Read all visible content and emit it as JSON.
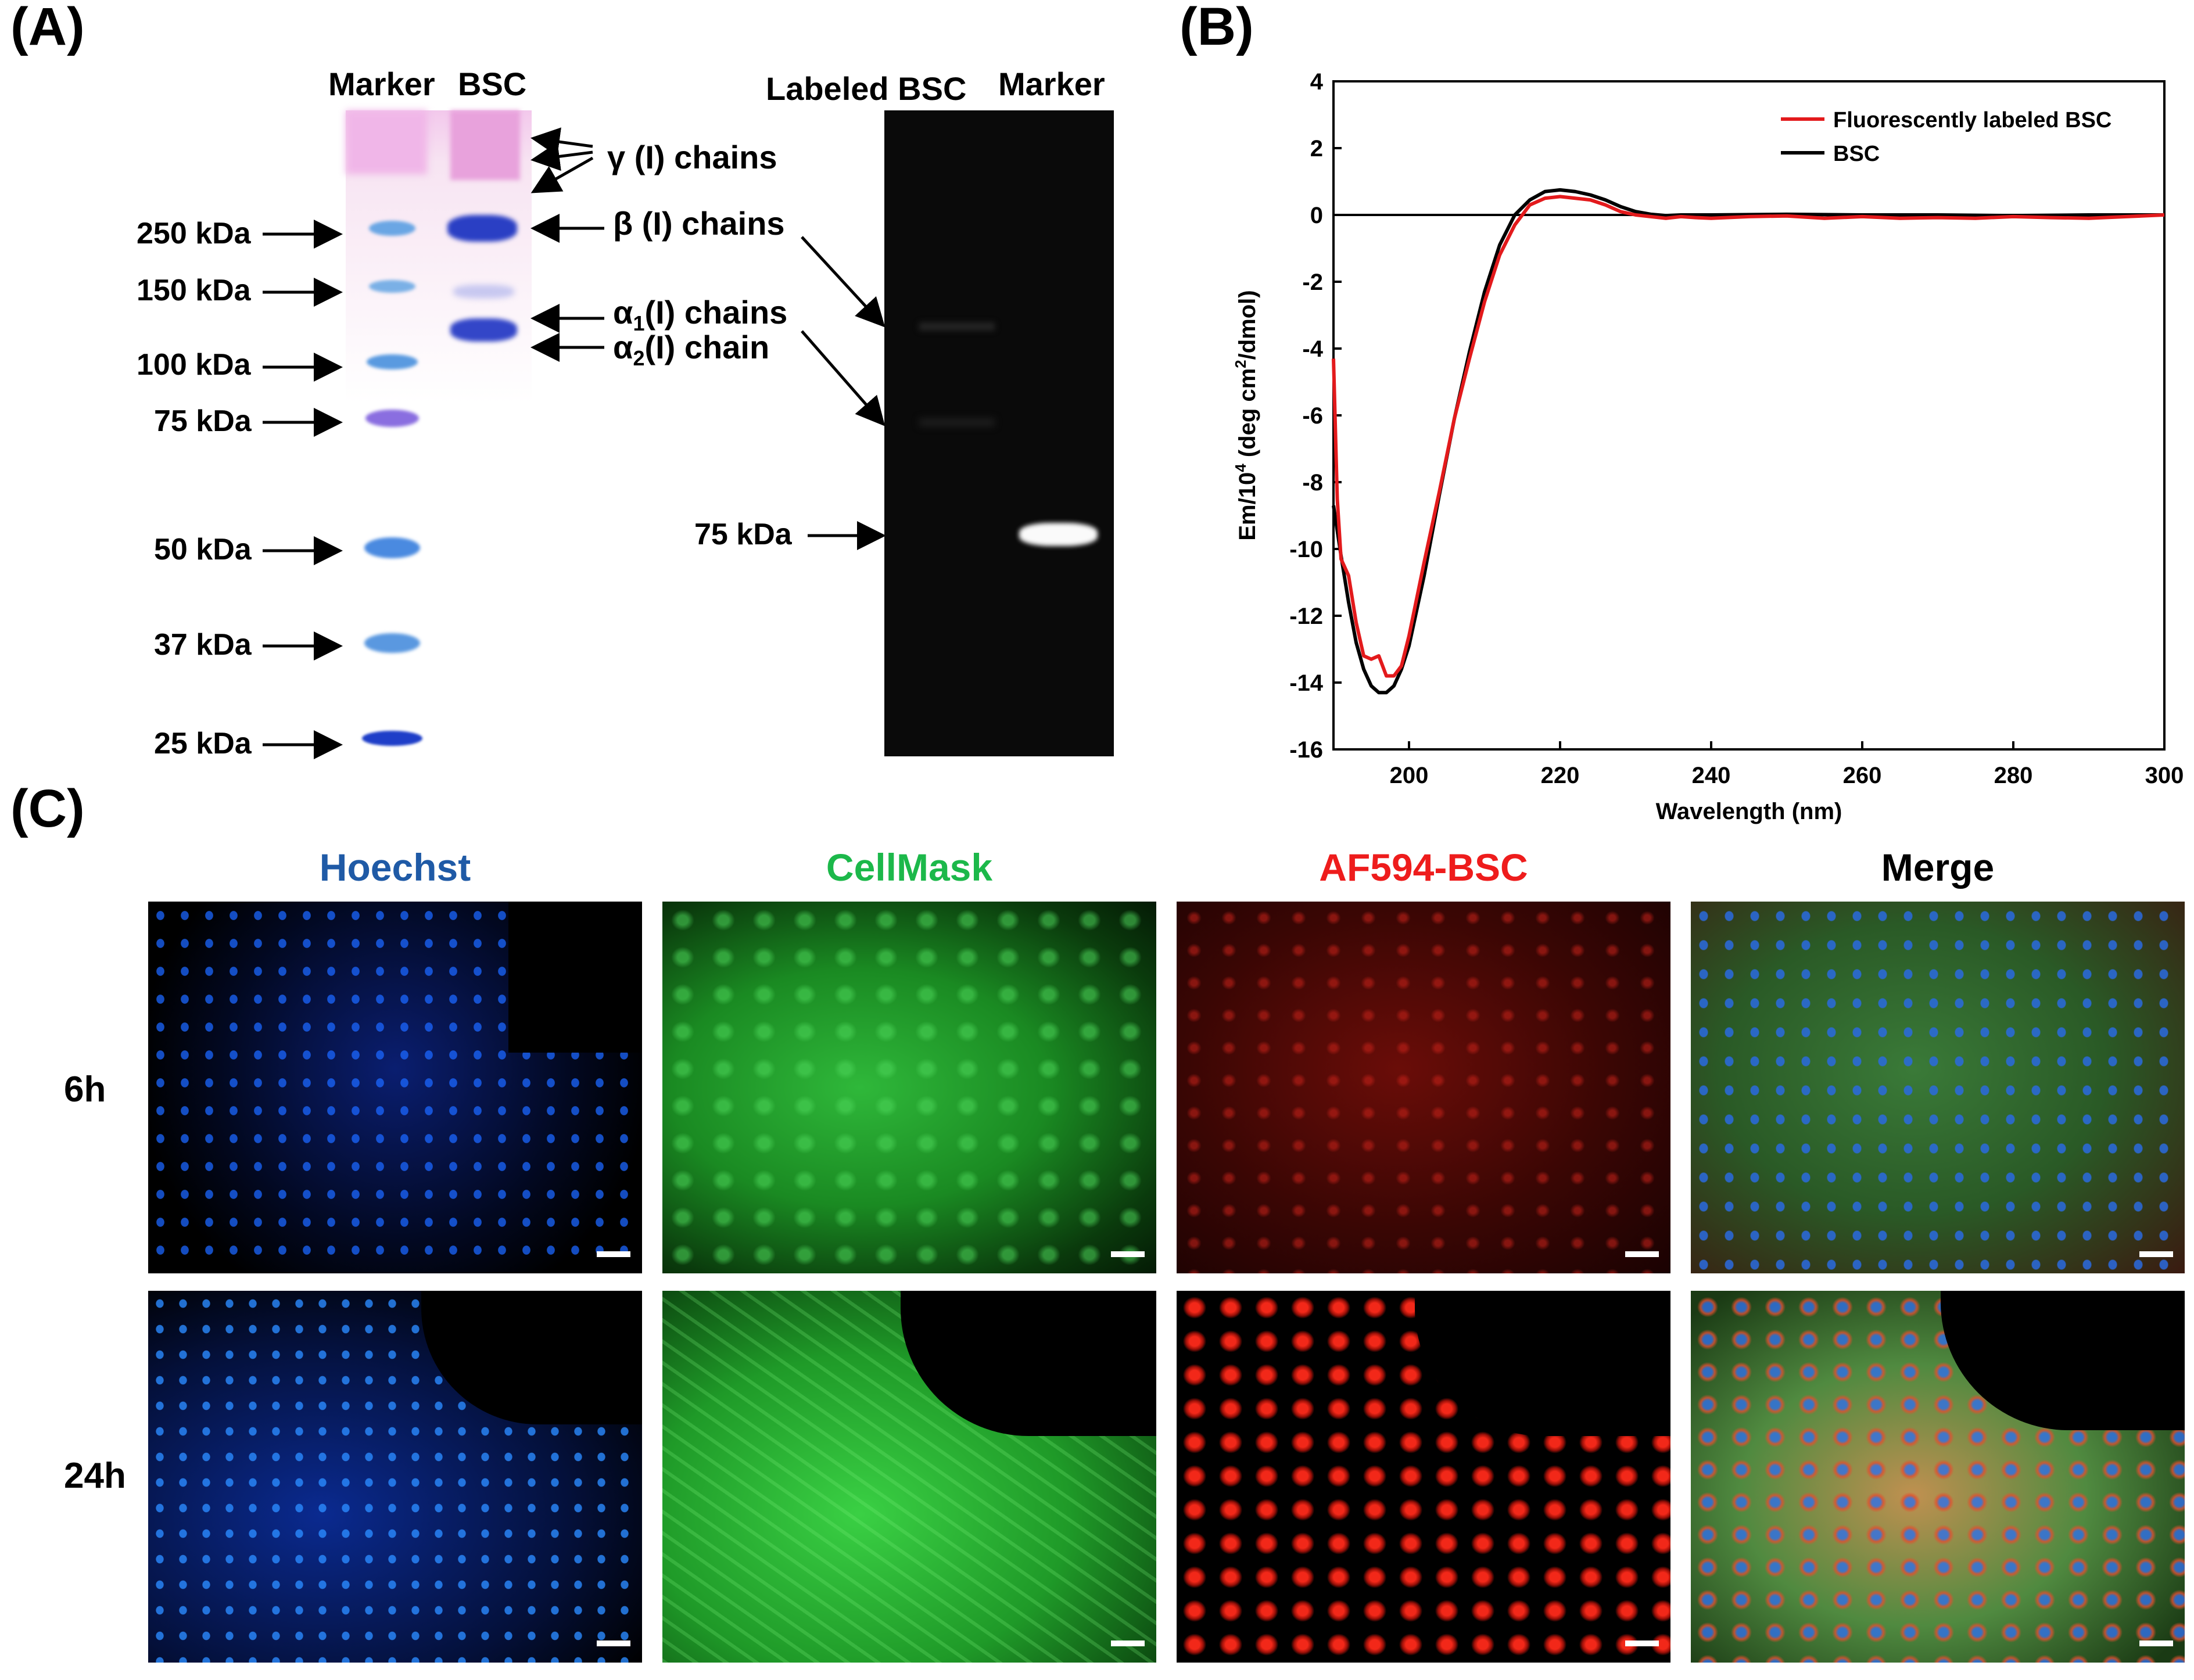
{
  "panels": {
    "a": "(A)",
    "b": "(B)",
    "c": "(C)"
  },
  "gel": {
    "lanes": {
      "marker": "Marker",
      "bsc": "BSC",
      "labeled_bsc": "Labeled BSC",
      "marker2": "Marker"
    },
    "kda_labels": [
      "250 kDa",
      "150 kDa",
      "100 kDa",
      "75 kDa",
      "50 kDa",
      "37 kDa",
      "25 kDa"
    ],
    "chains": {
      "gamma": "γ (I) chains",
      "beta": "β (I) chains",
      "alpha1_pre": "α",
      "alpha1_sub": "1",
      "alpha1_post": "(I) chains",
      "alpha2_pre": "α",
      "alpha2_sub": "2",
      "alpha2_post": "(I) chain"
    },
    "fluor_kda": "75 kDa",
    "colors": {
      "stain_pink": "#f3c8ec",
      "band_blue": "#2a3fc4",
      "marker_blue": "#5a9ae0",
      "marker_purple": "#8a6ee0",
      "gel_dark": "#0a0a0a"
    }
  },
  "chart_data": {
    "type": "line",
    "title": "",
    "xlabel": "Wavelength (nm)",
    "ylabel_pre": "Em/10",
    "ylabel_sup1": "4",
    "ylabel_mid": " (deg cm",
    "ylabel_sup2": "2",
    "ylabel_post": "/dmol)",
    "xlim": [
      190,
      300
    ],
    "ylim": [
      -16,
      4
    ],
    "xticks": [
      200,
      220,
      240,
      260,
      280,
      300
    ],
    "yticks": [
      4,
      2,
      0,
      -2,
      -4,
      -6,
      -8,
      -10,
      -12,
      -14,
      -16
    ],
    "legend_position": "top-right",
    "series": [
      {
        "name": "Fluorescently labeled BSC",
        "color": "#e31a1c",
        "x": [
          190,
          190.5,
          191,
          192,
          193,
          194,
          195,
          196,
          197,
          198,
          199,
          200,
          202,
          204,
          206,
          208,
          210,
          212,
          214,
          216,
          218,
          220,
          222,
          224,
          226,
          228,
          230,
          232,
          234,
          236,
          238,
          240,
          245,
          250,
          255,
          260,
          265,
          270,
          275,
          280,
          285,
          290,
          295,
          300
        ],
        "y": [
          -4.3,
          -8.5,
          -10.3,
          -10.8,
          -12.2,
          -13.2,
          -13.3,
          -13.2,
          -13.8,
          -13.8,
          -13.5,
          -12.6,
          -10.4,
          -8.3,
          -6.1,
          -4.3,
          -2.6,
          -1.2,
          -0.3,
          0.3,
          0.5,
          0.55,
          0.5,
          0.45,
          0.3,
          0.1,
          0.0,
          -0.05,
          -0.1,
          -0.05,
          -0.08,
          -0.1,
          -0.05,
          -0.03,
          -0.1,
          -0.05,
          -0.1,
          -0.08,
          -0.1,
          -0.05,
          -0.08,
          -0.1,
          -0.05,
          0.0
        ]
      },
      {
        "name": "BSC",
        "color": "#000000",
        "x": [
          190,
          191,
          192,
          193,
          194,
          195,
          196,
          197,
          198,
          199,
          200,
          202,
          204,
          206,
          208,
          210,
          212,
          214,
          216,
          218,
          220,
          222,
          224,
          226,
          228,
          230,
          232,
          234,
          236,
          238,
          240,
          250,
          260,
          270,
          280,
          290,
          300
        ],
        "y": [
          -8.7,
          -10.2,
          -11.6,
          -12.8,
          -13.6,
          -14.1,
          -14.3,
          -14.3,
          -14.1,
          -13.6,
          -12.9,
          -10.8,
          -8.4,
          -6.1,
          -4.1,
          -2.3,
          -0.9,
          0.0,
          0.45,
          0.7,
          0.75,
          0.7,
          0.6,
          0.45,
          0.25,
          0.1,
          0.02,
          -0.02,
          0.0,
          0.0,
          0.0,
          0.02,
          0.0,
          0.0,
          -0.02,
          0.0,
          0.0
        ]
      }
    ]
  },
  "micrographs": {
    "channels": [
      "Hoechst",
      "CellMask",
      "AF594-BSC",
      "Merge"
    ],
    "channel_colors": [
      "#1f5aa6",
      "#1cb84a",
      "#ee1c1c",
      "#000000"
    ],
    "times": [
      "6h",
      "24h"
    ]
  }
}
